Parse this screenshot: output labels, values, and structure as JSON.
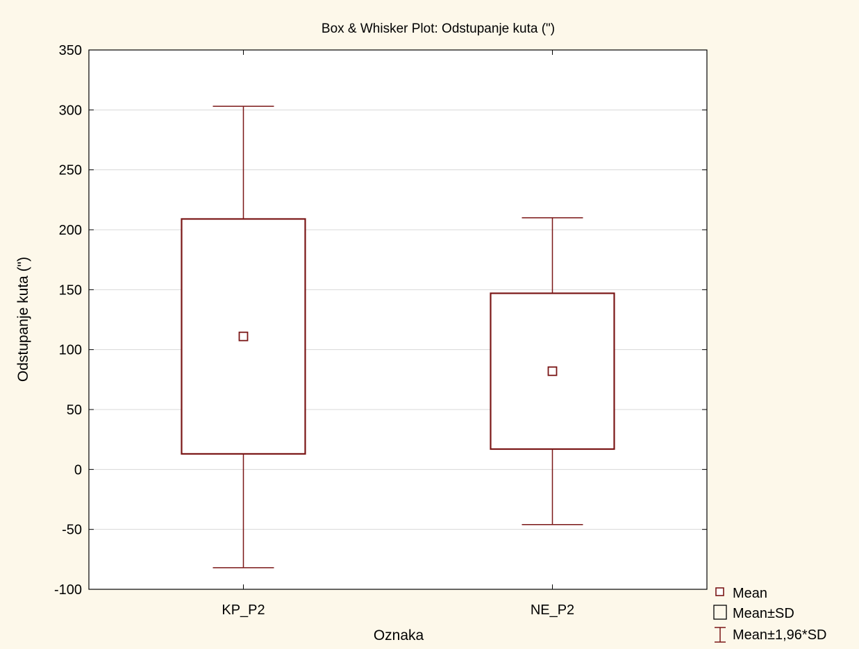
{
  "chart_data": {
    "type": "box",
    "title": "Box & Whisker Plot: Odstupanje kuta (\")",
    "xlabel": "Oznaka",
    "ylabel": "Odstupanje kuta (\")",
    "ylim": [
      -100,
      350
    ],
    "yticks": [
      "-100",
      "-50",
      "0",
      "50",
      "100",
      "150",
      "200",
      "250",
      "300",
      "350"
    ],
    "ytick_values": [
      -100,
      -50,
      0,
      50,
      100,
      150,
      200,
      250,
      300,
      350
    ],
    "grid": true,
    "categories": [
      "KP_P2",
      "NE_P2"
    ],
    "boxes": [
      {
        "category": "KP_P2",
        "mean": 111,
        "mean_minus_sd": 13,
        "mean_plus_sd": 209,
        "whisker_low": -82,
        "whisker_high": 303
      },
      {
        "category": "NE_P2",
        "mean": 82,
        "mean_minus_sd": 17,
        "mean_plus_sd": 147,
        "whisker_low": -46,
        "whisker_high": 210
      }
    ],
    "legend": {
      "position": "bottom-right",
      "entries": [
        "Mean",
        "Mean±SD",
        "Mean±1,96*SD"
      ]
    },
    "colors": {
      "series": "#7a1616",
      "grid": "#d8d8d8",
      "background": "#fdf8ea",
      "plot_background": "#ffffff"
    }
  }
}
